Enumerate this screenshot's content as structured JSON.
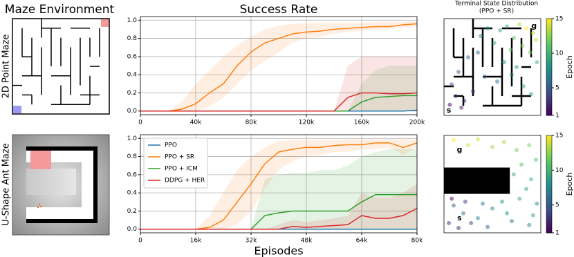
{
  "column_titles": {
    "maze": "Maze Environment",
    "success": "Success Rate",
    "terminal": "Terminal State Distribution",
    "terminal_sub": "(PPO + SR)"
  },
  "row_labels": [
    "2D Point Maze",
    "U-Shape Ant Maze"
  ],
  "chart_data": [
    {
      "type": "line",
      "xlim": [
        0,
        200000
      ],
      "xticks": [
        0,
        {
          "value": 40000,
          "label": "40k"
        },
        {
          "value": 80000,
          "label": "80k"
        },
        {
          "value": 120000,
          "label": "120k"
        },
        {
          "value": 160000,
          "label": "160k"
        },
        {
          "value": 200000,
          "label": "200k"
        }
      ],
      "ylim": [
        -0.04,
        1.04
      ],
      "yticks": [
        {
          "value": 0,
          "label": "0.0"
        },
        {
          "value": 0.2,
          "label": "0.2"
        },
        {
          "value": 0.4,
          "label": "0.4"
        },
        {
          "value": 0.6,
          "label": "0.6"
        },
        {
          "value": 0.8,
          "label": "0.8"
        },
        {
          "value": 1,
          "label": "1.0"
        }
      ],
      "grid": true,
      "x": [
        0,
        10000,
        20000,
        30000,
        40000,
        50000,
        60000,
        70000,
        80000,
        90000,
        100000,
        110000,
        120000,
        130000,
        140000,
        150000,
        160000,
        170000,
        180000,
        190000,
        200000
      ],
      "series": [
        {
          "name": "PPO",
          "color": "#1f77b4",
          "values": [
            0,
            0,
            0,
            0,
            0,
            0,
            0,
            0,
            0,
            0,
            0,
            0,
            0,
            0,
            0,
            0,
            0,
            0,
            0,
            0,
            0.01
          ]
        },
        {
          "name": "PPO + SR",
          "color": "#ff7f0e",
          "values": [
            0,
            0,
            0,
            0.02,
            0.08,
            0.2,
            0.3,
            0.5,
            0.65,
            0.75,
            0.8,
            0.85,
            0.87,
            0.88,
            0.9,
            0.91,
            0.92,
            0.93,
            0.93,
            0.95,
            0.96
          ],
          "lower": [
            0,
            0,
            0,
            0,
            0,
            0.05,
            0.15,
            0.3,
            0.45,
            0.55,
            0.65,
            0.75,
            0.8,
            0.82,
            0.85,
            0.87,
            0.88,
            0.9,
            0.9,
            0.92,
            0.93
          ],
          "upper": [
            0,
            0,
            0,
            0.1,
            0.3,
            0.45,
            0.6,
            0.72,
            0.82,
            0.9,
            0.94,
            0.96,
            0.97,
            0.97,
            0.97,
            0.97,
            0.97,
            0.98,
            0.98,
            0.98,
            0.99
          ]
        },
        {
          "name": "PPO + ICM",
          "color": "#2ca02c",
          "values": [
            0,
            0,
            0,
            0,
            0,
            0,
            0,
            0,
            0,
            0,
            0,
            0,
            0,
            0,
            0,
            0,
            0.1,
            0.15,
            0.16,
            0.17,
            0.17
          ],
          "lower": [
            0,
            0,
            0,
            0,
            0,
            0,
            0,
            0,
            0,
            0,
            0,
            0,
            0,
            0,
            0,
            0,
            0,
            0,
            0,
            0,
            0
          ],
          "upper": [
            0,
            0,
            0,
            0,
            0,
            0,
            0,
            0,
            0,
            0,
            0,
            0,
            0,
            0,
            0,
            0,
            0.3,
            0.45,
            0.5,
            0.5,
            0.5
          ]
        },
        {
          "name": "DDPG + HER",
          "color": "#d62728",
          "values": [
            0,
            0,
            0,
            0,
            0,
            0,
            0,
            0,
            0,
            0,
            0,
            0,
            0,
            0,
            0,
            0.15,
            0.2,
            0.2,
            0.19,
            0.19,
            0.2
          ],
          "lower": [
            0,
            0,
            0,
            0,
            0,
            0,
            0,
            0,
            0,
            0,
            0,
            0,
            0,
            0,
            0,
            0,
            0,
            0,
            0,
            0,
            0
          ],
          "upper": [
            0,
            0,
            0,
            0,
            0,
            0,
            0,
            0,
            0,
            0,
            0,
            0,
            0,
            0,
            0,
            0.5,
            0.6,
            0.6,
            0.6,
            0.6,
            0.6
          ]
        }
      ]
    },
    {
      "type": "line",
      "xlabel": "Episodes",
      "legend": "upper left",
      "xlim": [
        0,
        80000
      ],
      "xticks": [
        0,
        {
          "value": 16000,
          "label": "16k"
        },
        {
          "value": 32000,
          "label": "32k"
        },
        {
          "value": 48000,
          "label": "48k"
        },
        {
          "value": 64000,
          "label": "64k"
        },
        {
          "value": 80000,
          "label": "80k"
        }
      ],
      "ylim": [
        -0.04,
        1.04
      ],
      "yticks": [
        {
          "value": 0,
          "label": "0.0"
        },
        {
          "value": 0.2,
          "label": "0.2"
        },
        {
          "value": 0.4,
          "label": "0.4"
        },
        {
          "value": 0.6,
          "label": "0.6"
        },
        {
          "value": 0.8,
          "label": "0.8"
        },
        {
          "value": 1,
          "label": "1.0"
        }
      ],
      "grid": true,
      "x": [
        0,
        4000,
        8000,
        12000,
        16000,
        20000,
        24000,
        28000,
        32000,
        36000,
        40000,
        44000,
        48000,
        52000,
        56000,
        60000,
        64000,
        68000,
        72000,
        76000,
        80000
      ],
      "series": [
        {
          "name": "PPO",
          "color": "#1f77b4",
          "values": [
            0,
            0,
            0,
            0,
            0,
            0,
            0,
            0,
            0,
            0,
            0,
            0,
            0,
            0,
            0,
            0,
            0,
            0,
            0,
            0,
            0
          ]
        },
        {
          "name": "PPO + SR",
          "color": "#ff7f0e",
          "values": [
            0,
            0,
            0,
            0,
            0,
            0.02,
            0.1,
            0.3,
            0.5,
            0.72,
            0.85,
            0.88,
            0.9,
            0.9,
            0.92,
            0.93,
            0.93,
            0.95,
            0.95,
            0.9,
            0.95
          ],
          "lower": [
            0,
            0,
            0,
            0,
            0,
            0,
            0,
            0.05,
            0.2,
            0.45,
            0.65,
            0.75,
            0.8,
            0.82,
            0.85,
            0.85,
            0.88,
            0.88,
            0.9,
            0.82,
            0.9
          ],
          "upper": [
            0,
            0,
            0,
            0,
            0,
            0.15,
            0.4,
            0.65,
            0.8,
            0.9,
            0.97,
            0.98,
            0.98,
            0.98,
            0.98,
            0.99,
            0.99,
            0.99,
            0.99,
            0.99,
            0.99
          ]
        },
        {
          "name": "PPO + ICM",
          "color": "#2ca02c",
          "values": [
            0,
            0,
            0,
            0,
            0,
            0,
            0,
            0,
            0,
            0.15,
            0.18,
            0.2,
            0.2,
            0.2,
            0.2,
            0.2,
            0.3,
            0.38,
            0.38,
            0.38,
            0.38
          ],
          "lower": [
            0,
            0,
            0,
            0,
            0,
            0,
            0,
            0,
            0,
            0,
            0,
            0,
            0,
            0,
            0,
            0,
            0,
            0,
            0,
            0,
            0
          ],
          "upper": [
            0,
            0,
            0,
            0,
            0,
            0,
            0,
            0,
            0,
            0.55,
            0.6,
            0.62,
            0.62,
            0.65,
            0.65,
            0.7,
            0.8,
            0.85,
            0.88,
            0.88,
            0.88
          ]
        },
        {
          "name": "DDPG + HER",
          "color": "#d62728",
          "values": [
            0,
            0,
            0,
            0,
            0,
            0,
            0,
            0,
            0,
            0,
            0,
            0.03,
            0.02,
            0.03,
            0.04,
            0.05,
            0.15,
            0.12,
            0.12,
            0.15,
            0.23
          ],
          "lower": [
            0,
            0,
            0,
            0,
            0,
            0,
            0,
            0,
            0,
            0,
            0,
            0,
            0,
            0,
            0,
            0,
            0,
            0,
            0,
            0,
            0
          ],
          "upper": [
            0,
            0,
            0,
            0,
            0,
            0,
            0,
            0,
            0,
            0,
            0.05,
            0.1,
            0.08,
            0.1,
            0.12,
            0.15,
            0.4,
            0.35,
            0.35,
            0.4,
            0.5
          ]
        }
      ]
    },
    {
      "type": "scatter",
      "xlim": [
        0,
        10
      ],
      "ylim": [
        0,
        10
      ],
      "x": [
        8.5,
        9.2,
        7.8,
        9.5,
        8.9,
        7.2,
        6.5,
        8.1,
        9.6,
        5.8,
        6.9,
        7.5,
        4.5,
        5.2,
        3.8,
        2.5,
        1.5,
        0.8,
        1.2,
        2.1,
        3.0,
        4.2,
        5.5,
        6.2,
        7.0,
        8.2,
        9.0,
        3.5,
        1.8,
        0.6
      ],
      "y": [
        9.0,
        8.5,
        9.4,
        7.8,
        6.5,
        8.0,
        9.2,
        7.2,
        5.5,
        8.8,
        6.8,
        5.0,
        9.0,
        7.5,
        8.2,
        6.0,
        4.5,
        3.2,
        2.0,
        1.5,
        2.5,
        4.0,
        3.5,
        5.5,
        4.2,
        3.0,
        2.2,
        6.5,
        0.8,
        1.1
      ],
      "epoch": [
        15,
        14,
        13,
        14,
        12,
        11,
        10,
        12,
        10,
        9,
        11,
        9,
        8,
        9,
        7,
        6,
        5,
        4,
        3,
        2,
        3,
        5,
        6,
        8,
        7,
        9,
        8,
        6,
        2,
        1
      ],
      "annotations": [
        {
          "text": "g",
          "x": 9.3,
          "y": 9.2,
          "color": "#ff0000"
        },
        {
          "text": "s",
          "x": 0.5,
          "y": 0.5,
          "color": "#2020d0"
        }
      ],
      "colorbar": {
        "label": "Epoch",
        "lim": [
          1,
          15
        ],
        "ticks": [
          1,
          5,
          10,
          15
        ]
      }
    },
    {
      "type": "scatter",
      "xlim": [
        0,
        10
      ],
      "ylim": [
        0,
        10
      ],
      "x": [
        1.0,
        2.5,
        3.5,
        5.0,
        6.2,
        7.5,
        8.8,
        9.5,
        8.0,
        7.2,
        9.0,
        8.5,
        7.8,
        9.6,
        6.5,
        5.0,
        3.5,
        2.0,
        1.0,
        0.5,
        1.5,
        2.8,
        4.5,
        7.0,
        8.8,
        4.0,
        6.0,
        9.2,
        0.8,
        2.2
      ],
      "y": [
        9.5,
        9.0,
        9.6,
        8.8,
        9.3,
        8.5,
        9.0,
        7.5,
        7.0,
        6.0,
        5.5,
        4.5,
        3.5,
        3.0,
        2.0,
        2.5,
        1.5,
        2.0,
        2.8,
        1.0,
        0.5,
        1.0,
        0.6,
        1.2,
        0.8,
        3.0,
        3.2,
        1.8,
        3.5,
        3.2
      ],
      "epoch": [
        15,
        14,
        14,
        13,
        13,
        12,
        12,
        11,
        11,
        10,
        10,
        9,
        9,
        8,
        8,
        7,
        7,
        6,
        5,
        3,
        2,
        4,
        5,
        6,
        7,
        6,
        8,
        9,
        1,
        3
      ],
      "annotations": [
        {
          "text": "g",
          "x": 1.6,
          "y": 8.5,
          "color": "#ff0000"
        },
        {
          "text": "s",
          "x": 1.6,
          "y": 1.5,
          "color": "#2020d0"
        }
      ],
      "colorbar": {
        "label": "Epoch",
        "lim": [
          1,
          15
        ],
        "ticks": [
          1,
          5,
          10,
          15
        ]
      }
    }
  ]
}
